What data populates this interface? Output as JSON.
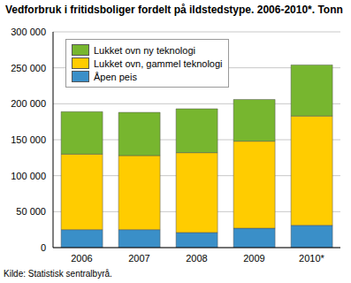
{
  "chart_data": {
    "type": "bar",
    "title": "Vedforbruk i fritidsboliger fordelt på ildstedstype. 2006-2010*. Tonn",
    "source": "Kilde: Statistisk sentralbyrå.",
    "categories": [
      "2006",
      "2007",
      "2008",
      "2009",
      "2010*"
    ],
    "series": [
      {
        "name": "Åpen peis",
        "color": "#3a8fc8",
        "values": [
          25000,
          25000,
          21000,
          27000,
          31000
        ]
      },
      {
        "name": "Lukket ovn, gammel teknologi",
        "color": "#ffcc00",
        "values": [
          105000,
          103000,
          111000,
          121000,
          152000
        ]
      },
      {
        "name": "Lukket ovn ny teknologi",
        "color": "#77b62f",
        "values": [
          59000,
          60000,
          61000,
          58000,
          71000
        ]
      }
    ],
    "stacked": true,
    "ylim": [
      0,
      300000
    ],
    "yticks": [
      0,
      {
        "value": 50000,
        "label": "50 000"
      },
      {
        "value": 100000,
        "label": "100 000"
      },
      {
        "value": 150000,
        "label": "150 000"
      },
      {
        "value": 200000,
        "label": "200 000"
      },
      {
        "value": 250000,
        "label": "250 000"
      },
      {
        "value": 300000,
        "label": "300 000"
      }
    ],
    "grid": true,
    "legend": "upper left"
  }
}
